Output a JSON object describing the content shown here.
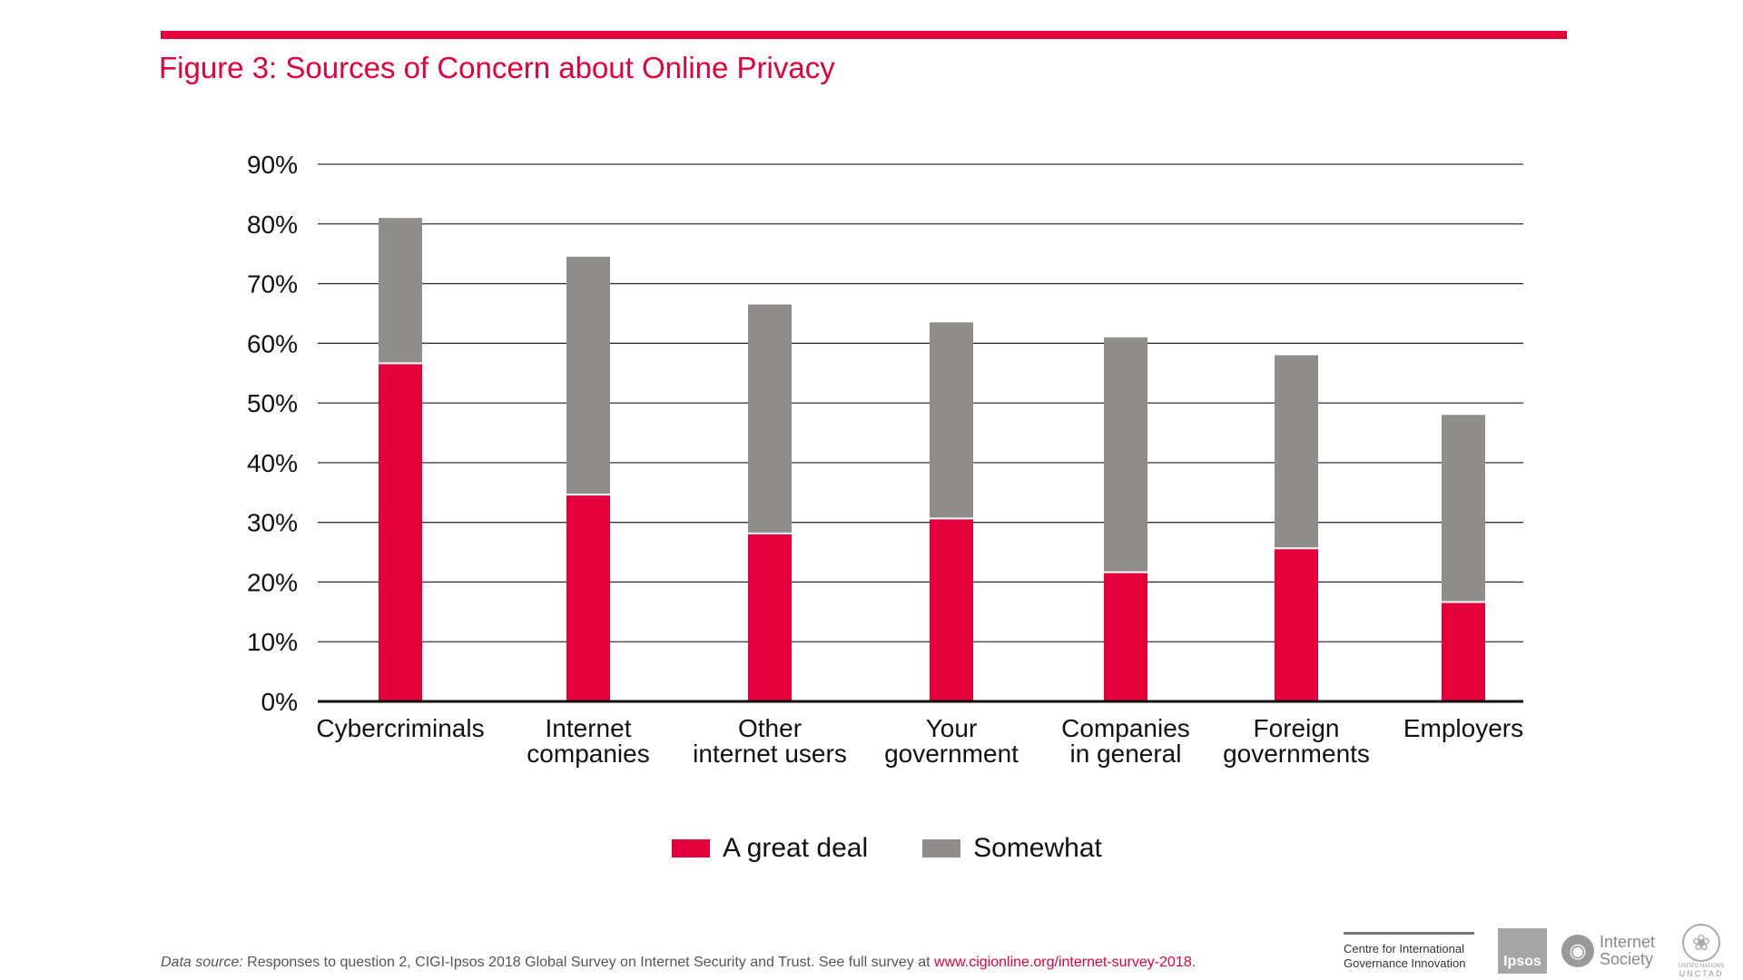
{
  "figure": {
    "title": "Figure 3: Sources of Concern about Online Privacy",
    "accent_color": "#e4003b"
  },
  "chart_data": {
    "type": "bar",
    "stacked": true,
    "title": "Figure 3: Sources of Concern about Online Privacy",
    "xlabel": "",
    "ylabel": "",
    "ylim": [
      0,
      90
    ],
    "yticks": [
      0,
      10,
      20,
      30,
      40,
      50,
      60,
      70,
      80,
      90
    ],
    "ytick_labels": [
      "0%",
      "10%",
      "20%",
      "30%",
      "40%",
      "50%",
      "60%",
      "70%",
      "80%",
      "90%"
    ],
    "grid": true,
    "legend_position": "bottom",
    "categories": [
      [
        "Cybercriminals"
      ],
      [
        "Internet",
        "companies"
      ],
      [
        "Other",
        "internet users"
      ],
      [
        "Your",
        "government"
      ],
      [
        "Companies",
        "in general"
      ],
      [
        "Foreign",
        "governments"
      ],
      [
        "Employers"
      ]
    ],
    "series": [
      {
        "name": "A great deal",
        "color": "#e4003b",
        "values": [
          56.5,
          34.5,
          28,
          30.5,
          21.5,
          25.5,
          16.5
        ]
      },
      {
        "name": "Somewhat",
        "color": "#8f8e8b",
        "values": [
          24.5,
          40,
          38.5,
          33,
          39.5,
          32.5,
          31.5
        ]
      }
    ]
  },
  "footer": {
    "source_lead": "Data source:",
    "source_text": " Responses to question 2, CIGI-Ipsos 2018 Global Survey on Internet Security and Trust. See full survey at ",
    "source_link": "www.cigionline.org/internet-survey-2018",
    "source_end": "."
  },
  "logos": {
    "cigi_line1": "Centre for International",
    "cigi_line2": "Governance Innovation",
    "ipsos": "Ipsos",
    "isoc_line1": "Internet",
    "isoc_line2": "Society",
    "un_small": "UNITED NATIONS",
    "un_big": "UNCTAD"
  }
}
